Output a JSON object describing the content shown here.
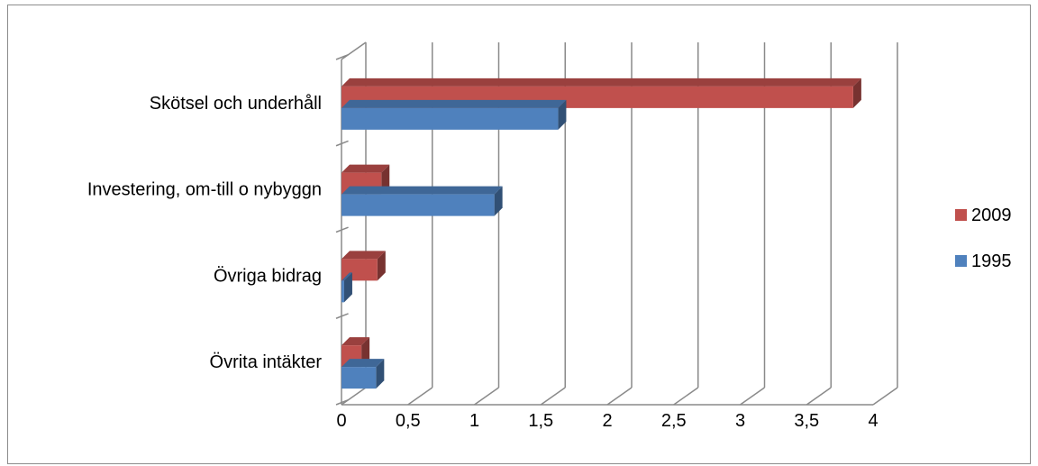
{
  "chart_data": {
    "type": "bar",
    "orientation": "horizontal",
    "style": "3d",
    "categories": [
      "Skötsel och underhåll",
      "Investering, om-till o nybyggn",
      "Övriga bidrag",
      "Övrita intäkter"
    ],
    "series": [
      {
        "name": "2009",
        "color": "#c0504d",
        "values": [
          3.85,
          0.3,
          0.27,
          0.15
        ]
      },
      {
        "name": "1995",
        "color": "#4f81bd",
        "values": [
          1.63,
          1.15,
          0.02,
          0.26
        ]
      }
    ],
    "xlim": [
      0,
      4
    ],
    "x_ticks": [
      "0",
      "0,5",
      "1",
      "1,5",
      "2",
      "2,5",
      "3",
      "3,5",
      "4"
    ],
    "grid": true,
    "legend_position": "right",
    "title": "",
    "xlabel": "",
    "ylabel": ""
  }
}
